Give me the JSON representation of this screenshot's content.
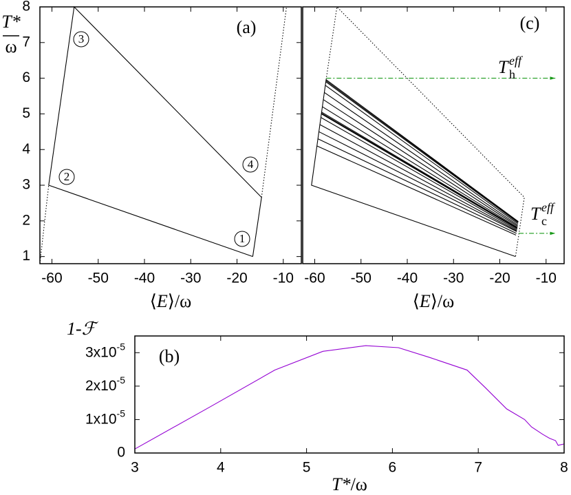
{
  "chart_data": [
    {
      "type": "line",
      "title": "(a)",
      "xlabel": [
        "⟨",
        "E",
        "⟩/ω"
      ],
      "ylabel": {
        "num": "T*",
        "den": "ω"
      },
      "xlim": [
        -62.6,
        -6.1
      ],
      "xticks": [
        -60,
        -50,
        -40,
        -30,
        -20,
        -10
      ],
      "ylim": [
        0.8,
        8
      ],
      "yticks": [
        1,
        2,
        3,
        4,
        5,
        6,
        7,
        8
      ],
      "series": [
        {
          "color": "#000000",
          "dash": "solid",
          "x": [
            -16.6,
            -60.7,
            -55.2,
            -14.7,
            -16.6
          ],
          "values": [
            1,
            3,
            8,
            2.66,
            1
          ]
        },
        {
          "color": "#000000",
          "dash": "dotted",
          "x": [
            -62.6,
            -60.7
          ],
          "values": [
            0.8,
            3
          ]
        },
        {
          "color": "#000000",
          "dash": "dotted",
          "x": [
            -14.7,
            -9.3
          ],
          "values": [
            2.66,
            8
          ]
        }
      ],
      "annotations": [
        "1",
        "2",
        "3",
        "4"
      ]
    },
    {
      "type": "line",
      "title": "(c)",
      "xlabel": [
        "⟨",
        "E",
        "⟩/ω"
      ],
      "xlim": [
        -62.6,
        -6.1
      ],
      "xticks": [
        -60,
        -50,
        -40,
        -30,
        -20,
        -10
      ],
      "ylim": [
        0.8,
        8
      ],
      "series": [
        {
          "color": "#000000",
          "dash": "dotted",
          "x": [
            -57.54,
            -55.2,
            -14.7,
            -16.6
          ],
          "values": [
            5.96,
            8,
            2.66,
            1
          ]
        },
        {
          "color": "#000000",
          "dash": "solid",
          "x": [
            -57.54,
            -60.7,
            -16.6
          ],
          "values": [
            5.96,
            3,
            1
          ]
        },
        {
          "color": "#000000",
          "dash": "solid",
          "x": [
            -57.54,
            -16.0
          ],
          "values": [
            5.96,
            1.98
          ]
        },
        {
          "color": "#000000",
          "dash": "solid",
          "x": [
            -57.57,
            -16.02
          ],
          "values": [
            5.93,
            1.97
          ]
        },
        {
          "color": "#000000",
          "dash": "solid",
          "x": [
            -57.6,
            -16.05
          ],
          "values": [
            5.9,
            1.95
          ]
        },
        {
          "color": "#000000",
          "dash": "solid",
          "x": [
            -57.71,
            -16.1
          ],
          "values": [
            5.8,
            1.92
          ]
        },
        {
          "color": "#000000",
          "dash": "solid",
          "x": [
            -57.93,
            -16.1
          ],
          "values": [
            5.6,
            1.88
          ]
        },
        {
          "color": "#000000",
          "dash": "solid",
          "x": [
            -58.14,
            -16.15
          ],
          "values": [
            5.4,
            1.85
          ]
        },
        {
          "color": "#000000",
          "dash": "solid",
          "x": [
            -58.35,
            -16.2
          ],
          "values": [
            5.2,
            1.82
          ]
        },
        {
          "color": "#000000",
          "dash": "solid",
          "x": [
            -58.51,
            -16.2
          ],
          "values": [
            5.05,
            1.8
          ]
        },
        {
          "color": "#000000",
          "dash": "solid",
          "x": [
            -58.54,
            -16.22
          ],
          "values": [
            5.02,
            1.79
          ]
        },
        {
          "color": "#000000",
          "dash": "solid",
          "x": [
            -58.57,
            -16.25
          ],
          "values": [
            5.0,
            1.78
          ]
        },
        {
          "color": "#000000",
          "dash": "solid",
          "x": [
            -58.67,
            -16.3
          ],
          "values": [
            4.9,
            1.75
          ]
        },
        {
          "color": "#000000",
          "dash": "solid",
          "x": [
            -58.88,
            -16.3
          ],
          "values": [
            4.7,
            1.72
          ]
        },
        {
          "color": "#000000",
          "dash": "solid",
          "x": [
            -59.1,
            -16.35
          ],
          "values": [
            4.5,
            1.7
          ]
        },
        {
          "color": "#000000",
          "dash": "solid",
          "x": [
            -59.31,
            -16.4
          ],
          "values": [
            4.3,
            1.65
          ]
        },
        {
          "color": "#000000",
          "dash": "solid",
          "x": [
            -59.52,
            -16.5
          ],
          "values": [
            4.1,
            1.6
          ]
        },
        {
          "color": "#1a9a1a",
          "dash": "dashed",
          "arrow": true,
          "x": [
            -57.5,
            -8.0
          ],
          "values": [
            6,
            6
          ]
        },
        {
          "color": "#1a9a1a",
          "dash": "dashed",
          "arrow": true,
          "x": [
            -15.9,
            -8.0
          ],
          "values": [
            1.65,
            1.65
          ]
        }
      ],
      "annotations": [
        {
          "base": "T",
          "sup": "eff",
          "sub": "h"
        },
        {
          "base": "T",
          "sup": "eff",
          "sub": "c"
        }
      ]
    },
    {
      "type": "line",
      "title": "(b)",
      "xlabel": [
        "T*",
        "/ω"
      ],
      "ylabel": "1-ℱ",
      "xlim": [
        3,
        8
      ],
      "xticks": [
        3,
        4,
        5,
        6,
        7,
        8
      ],
      "ylim": [
        0,
        3.5e-05
      ],
      "yticks": [
        0,
        {
          "value": 1e-05,
          "label": "1x10",
          "sup": "-5"
        },
        {
          "value": 2e-05,
          "label": "2x10",
          "sup": "-5"
        },
        {
          "value": 3e-05,
          "label": "3x10",
          "sup": "-5"
        }
      ],
      "series": [
        {
          "color": "#9400d3",
          "dash": "solid",
          "x": [
            3.0,
            3.87,
            4.63,
            5.19,
            5.69,
            6.07,
            6.43,
            6.87,
            7.08,
            7.33,
            7.54,
            7.62,
            7.75,
            7.83,
            7.9,
            7.93,
            8.0
          ],
          "values": [
            1.2e-06,
            1.37e-05,
            2.48e-05,
            3.04e-05,
            3.21e-05,
            3.15e-05,
            2.86e-05,
            2.48e-05,
            1.96e-05,
            1.32e-05,
            1e-05,
            7.8e-06,
            5.6e-06,
            4.4e-06,
            3.7e-06,
            2.3e-06,
            2.7e-06
          ]
        }
      ]
    }
  ]
}
